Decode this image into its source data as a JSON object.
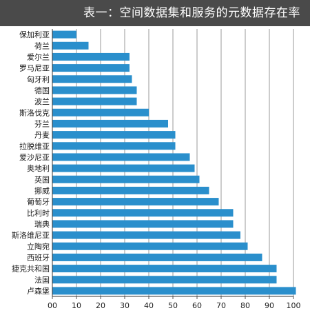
{
  "title": "表一：空间数据集和服务的元数据存在率",
  "colors": {
    "bar": "#2a8fcc",
    "title_bg": "#4a4a4a",
    "grid": "#9a9a9a",
    "text": "#1a1a1a"
  },
  "chart_data": {
    "type": "bar",
    "orientation": "horizontal",
    "title": "表一：空间数据集和服务的元数据存在率",
    "categories": [
      "保加利亚",
      "荷兰",
      "爱尔兰",
      "罗马尼亚",
      "匈牙利",
      "德国",
      "波兰",
      "斯洛伐克",
      "芬兰",
      "丹麦",
      "拉脱维亚",
      "爱沙尼亚",
      "奥地利",
      "英国",
      "挪威",
      "葡萄牙",
      "比利时",
      "瑞典",
      "斯洛维尼亚",
      "立陶宛",
      "西班牙",
      "捷克共和国",
      "法国",
      "卢森堡"
    ],
    "values": [
      10,
      15,
      32,
      32,
      33,
      35,
      35,
      40,
      48,
      51,
      51,
      57,
      59,
      61,
      65,
      69,
      75,
      75,
      78,
      81,
      87,
      93,
      93,
      101
    ],
    "xlim": [
      0,
      100
    ],
    "xticks": [
      "00",
      "10",
      "20",
      "30",
      "40",
      "50",
      "60",
      "70",
      "80",
      "90",
      "100"
    ],
    "grid": "vertical"
  }
}
